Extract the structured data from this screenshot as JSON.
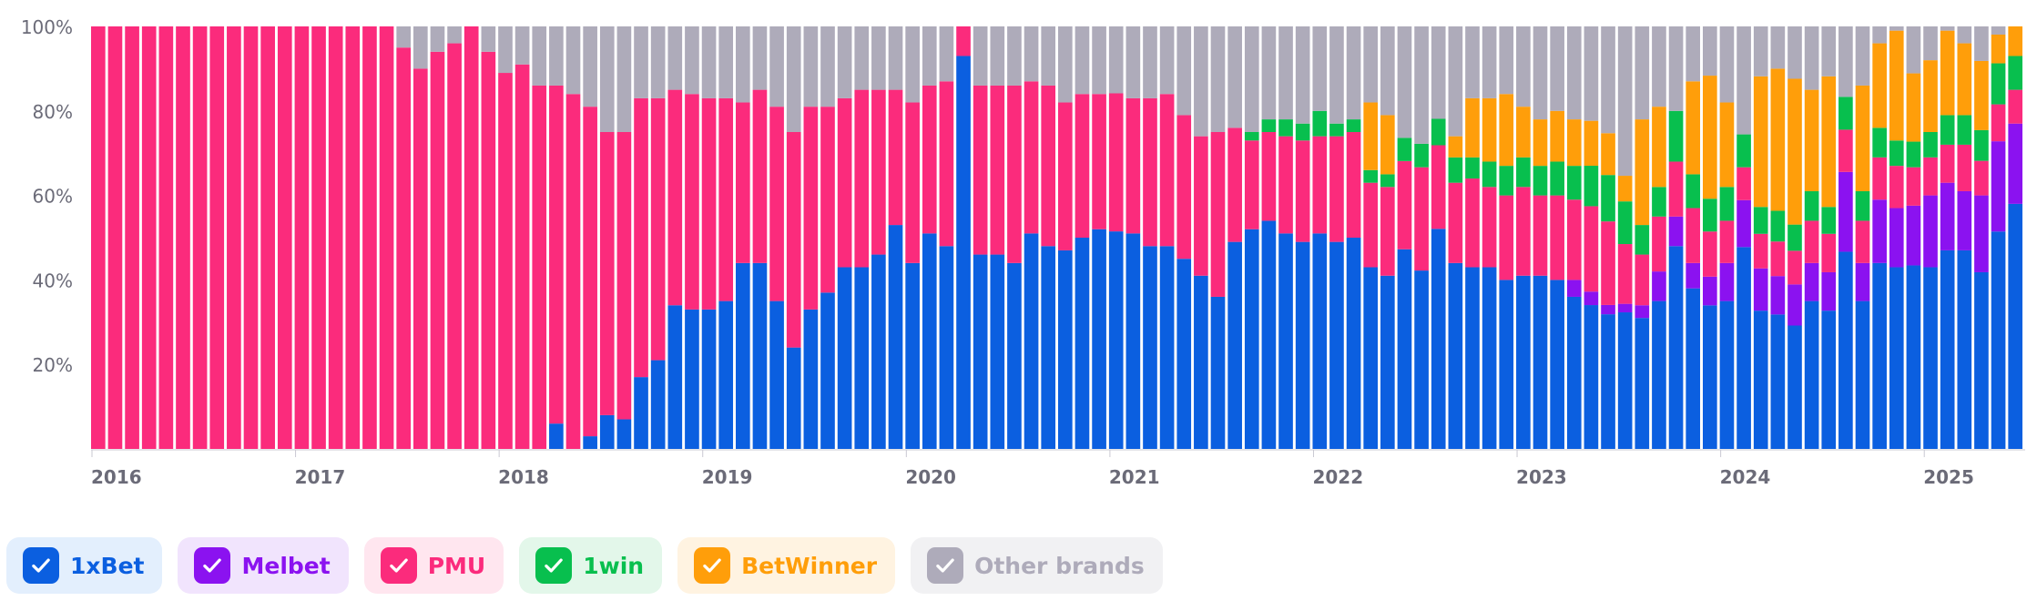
{
  "chart_data": {
    "type": "bar",
    "stacked": true,
    "normalized": true,
    "y_ticks": [
      "20%",
      "40%",
      "60%",
      "80%",
      "100%"
    ],
    "x_ticks": [
      "2016",
      "2017",
      "2018",
      "2019",
      "2020",
      "2021",
      "2022",
      "2023",
      "2024",
      "2025"
    ],
    "x_tick_month_index": [
      0,
      12,
      24,
      36,
      48,
      60,
      72,
      84,
      96,
      108
    ],
    "series": [
      {
        "name": "1xBet",
        "color": "#0b5fe0",
        "values": [
          0,
          0,
          0,
          0,
          0,
          0,
          0,
          0,
          0,
          0,
          0,
          0,
          0,
          0,
          0,
          0,
          0,
          0,
          0,
          0,
          0,
          0,
          0,
          0,
          0,
          0,
          0,
          6,
          0,
          3,
          8,
          7,
          17,
          21,
          34,
          33,
          33,
          35,
          44,
          44,
          35,
          24,
          33,
          37,
          43,
          43,
          46,
          53,
          44,
          51,
          48,
          93,
          46,
          46,
          44,
          51,
          48,
          47,
          50,
          52,
          52,
          51,
          48,
          48,
          45,
          41,
          36,
          49,
          52,
          54,
          51,
          49,
          51,
          49,
          50,
          43,
          41,
          43,
          38,
          50,
          44,
          43,
          43,
          40,
          41,
          41,
          40,
          36,
          32,
          29,
          32,
          31,
          35,
          48,
          38,
          35,
          35,
          43,
          36,
          35,
          33,
          35,
          36,
          42,
          35,
          44,
          43,
          43,
          43,
          47,
          47,
          46,
          53,
          58
        ]
      },
      {
        "name": "Melbet",
        "color": "#8b12f0",
        "values": [
          0,
          0,
          0,
          0,
          0,
          0,
          0,
          0,
          0,
          0,
          0,
          0,
          0,
          0,
          0,
          0,
          0,
          0,
          0,
          0,
          0,
          0,
          0,
          0,
          0,
          0,
          0,
          0,
          0,
          0,
          0,
          0,
          0,
          0,
          0,
          0,
          0,
          0,
          0,
          0,
          0,
          0,
          0,
          0,
          0,
          0,
          0,
          0,
          0,
          0,
          0,
          0,
          0,
          0,
          0,
          0,
          0,
          0,
          0,
          0,
          0,
          0,
          0,
          0,
          0,
          0,
          0,
          0,
          0,
          0,
          0,
          0,
          0,
          0,
          0,
          0,
          0,
          0,
          0,
          0,
          0,
          0,
          0,
          0,
          0,
          0,
          0,
          4,
          3,
          2,
          2,
          3,
          7,
          7,
          6,
          7,
          9,
          10,
          11,
          10,
          11,
          9,
          10,
          17,
          9,
          15,
          14,
          14,
          17,
          16,
          14,
          20,
          22,
          19
        ]
      },
      {
        "name": "PMU",
        "color": "#fb2b7c",
        "values": [
          100,
          100,
          100,
          100,
          100,
          100,
          100,
          100,
          100,
          100,
          100,
          100,
          100,
          100,
          100,
          100,
          100,
          100,
          95,
          90,
          94,
          96,
          100,
          94,
          89,
          91,
          86,
          80,
          84,
          78,
          67,
          68,
          66,
          62,
          51,
          51,
          50,
          48,
          38,
          41,
          46,
          51,
          48,
          44,
          40,
          42,
          39,
          32,
          38,
          35,
          39,
          7,
          40,
          40,
          42,
          36,
          38,
          35,
          34,
          32,
          33,
          32,
          35,
          36,
          34,
          33,
          39,
          27,
          21,
          21,
          23,
          24,
          23,
          25,
          25,
          20,
          21,
          19,
          22,
          19,
          19,
          21,
          19,
          20,
          21,
          19,
          20,
          19,
          19,
          18,
          14,
          12,
          13,
          13,
          13,
          11,
          10,
          7,
          9,
          9,
          9,
          10,
          10,
          9,
          10,
          10,
          10,
          9,
          9,
          9,
          11,
          9,
          9,
          8
        ]
      },
      {
        "name": "1win",
        "color": "#08bf4e",
        "values": [
          0,
          0,
          0,
          0,
          0,
          0,
          0,
          0,
          0,
          0,
          0,
          0,
          0,
          0,
          0,
          0,
          0,
          0,
          0,
          0,
          0,
          0,
          0,
          0,
          0,
          0,
          0,
          0,
          0,
          0,
          0,
          0,
          0,
          0,
          0,
          0,
          0,
          0,
          0,
          0,
          0,
          0,
          0,
          0,
          0,
          0,
          0,
          0,
          0,
          0,
          0,
          0,
          0,
          0,
          0,
          0,
          0,
          0,
          0,
          0,
          0,
          0,
          0,
          0,
          0,
          0,
          0,
          0,
          2,
          3,
          4,
          4,
          6,
          3,
          3,
          3,
          3,
          5,
          5,
          6,
          6,
          5,
          6,
          7,
          7,
          7,
          8,
          8,
          9,
          10,
          10,
          7,
          7,
          12,
          8,
          8,
          8,
          7,
          7,
          8,
          7,
          7,
          7,
          7,
          7,
          7,
          6,
          6,
          6,
          7,
          7,
          8,
          10,
          8
        ]
      },
      {
        "name": "BetWinner",
        "color": "#ff9e0a",
        "values": [
          0,
          0,
          0,
          0,
          0,
          0,
          0,
          0,
          0,
          0,
          0,
          0,
          0,
          0,
          0,
          0,
          0,
          0,
          0,
          0,
          0,
          0,
          0,
          0,
          0,
          0,
          0,
          0,
          0,
          0,
          0,
          0,
          0,
          0,
          0,
          0,
          0,
          0,
          0,
          0,
          0,
          0,
          0,
          0,
          0,
          0,
          0,
          0,
          0,
          0,
          0,
          0,
          0,
          0,
          0,
          0,
          0,
          0,
          0,
          0,
          0,
          0,
          0,
          0,
          0,
          0,
          0,
          0,
          0,
          0,
          0,
          0,
          0,
          0,
          0,
          16,
          14,
          0,
          0,
          0,
          5,
          14,
          15,
          17,
          12,
          11,
          12,
          11,
          10,
          9,
          6,
          25,
          19,
          0,
          22,
          30,
          20,
          0,
          34,
          37,
          39,
          24,
          34,
          0,
          25,
          20,
          26,
          16,
          17,
          20,
          17,
          18,
          7,
          7
        ]
      },
      {
        "name": "Other brands",
        "color": "#aeabba",
        "values": [
          0,
          0,
          0,
          0,
          0,
          0,
          0,
          0,
          0,
          0,
          0,
          0,
          0,
          0,
          0,
          0,
          0,
          0,
          5,
          10,
          6,
          4,
          0,
          6,
          11,
          9,
          14,
          14,
          16,
          19,
          25,
          25,
          17,
          17,
          15,
          16,
          17,
          17,
          18,
          15,
          19,
          25,
          19,
          19,
          17,
          15,
          15,
          15,
          18,
          14,
          13,
          0,
          14,
          14,
          14,
          13,
          14,
          18,
          16,
          16,
          16,
          17,
          17,
          16,
          21,
          26,
          25,
          24,
          25,
          22,
          22,
          23,
          20,
          23,
          22,
          18,
          21,
          24,
          25,
          21,
          26,
          17,
          17,
          16,
          19,
          22,
          20,
          22,
          21,
          23,
          35,
          22,
          19,
          20,
          13,
          12,
          18,
          23,
          13,
          11,
          14,
          15,
          13,
          15,
          14,
          4,
          1,
          11,
          8,
          1,
          4,
          9,
          2,
          0
        ]
      }
    ]
  },
  "legend": [
    {
      "label": "1xBet",
      "color": "#0b5fe0",
      "bg": "#e3effd"
    },
    {
      "label": "Melbet",
      "color": "#8b12f0",
      "bg": "#f1e4fd"
    },
    {
      "label": "PMU",
      "color": "#fb2b7c",
      "bg": "#ffe6ef"
    },
    {
      "label": "1win",
      "color": "#08bf4e",
      "bg": "#e3f7ea"
    },
    {
      "label": "BetWinner",
      "color": "#ff9e0a",
      "bg": "#fff3e1"
    },
    {
      "label": "Other brands",
      "color": "#aeabba",
      "bg": "#f1f1f3"
    }
  ]
}
